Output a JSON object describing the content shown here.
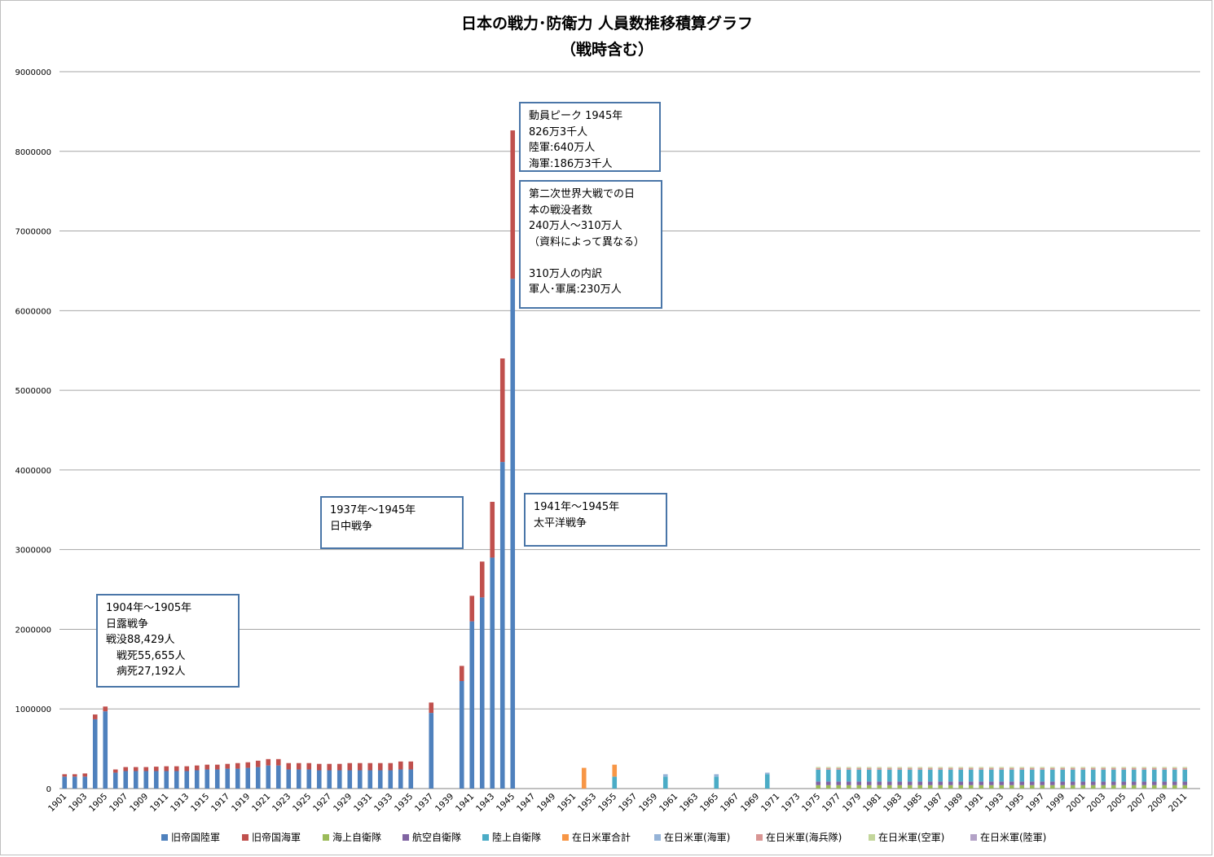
{
  "chart_data": {
    "type": "bar",
    "stacked": true,
    "title": "日本の戦力･防衛力 人員数推移積算グラフ",
    "subtitle": "（戦時含む）",
    "ylim": [
      0,
      9000000
    ],
    "y_ticks": [
      "0",
      "1000000",
      "2000000",
      "3000000",
      "4000000",
      "5000000",
      "6000000",
      "7000000",
      "8000000",
      "9000000"
    ],
    "grid": "horizontal",
    "legend_position": "bottom",
    "x_range": [
      1901,
      2012
    ],
    "x_tick_labels": [
      "1901",
      "1903",
      "1905",
      "1907",
      "1909",
      "1911",
      "1913",
      "1915",
      "1917",
      "1919",
      "1921",
      "1923",
      "1925",
      "1927",
      "1929",
      "1931",
      "1933",
      "1935",
      "1937",
      "1939",
      "1941",
      "1943",
      "1945",
      "1947",
      "1949",
      "1951",
      "1953",
      "1955",
      "1957",
      "1959",
      "1961",
      "1963",
      "1965",
      "1967",
      "1969",
      "1971",
      "1973",
      "1975",
      "1977",
      "1979",
      "1981",
      "1983",
      "1985",
      "1987",
      "1989",
      "1991",
      "1993",
      "1995",
      "1997",
      "1999",
      "2001",
      "2003",
      "2005",
      "2007",
      "2009",
      "2011"
    ],
    "series": [
      {
        "name": "旧帝国陸軍",
        "color": "#4f81bd",
        "values": [
          [
            1901,
            150000
          ],
          [
            1902,
            150000
          ],
          [
            1903,
            150000
          ],
          [
            1904,
            870000
          ],
          [
            1905,
            970000
          ],
          [
            1906,
            200000
          ],
          [
            1907,
            220000
          ],
          [
            1908,
            220000
          ],
          [
            1909,
            220000
          ],
          [
            1910,
            220000
          ],
          [
            1911,
            220000
          ],
          [
            1912,
            220000
          ],
          [
            1913,
            220000
          ],
          [
            1914,
            230000
          ],
          [
            1915,
            240000
          ],
          [
            1916,
            240000
          ],
          [
            1917,
            250000
          ],
          [
            1918,
            250000
          ],
          [
            1919,
            260000
          ],
          [
            1920,
            270000
          ],
          [
            1921,
            290000
          ],
          [
            1922,
            290000
          ],
          [
            1923,
            240000
          ],
          [
            1924,
            240000
          ],
          [
            1925,
            240000
          ],
          [
            1926,
            230000
          ],
          [
            1927,
            230000
          ],
          [
            1928,
            230000
          ],
          [
            1929,
            230000
          ],
          [
            1930,
            230000
          ],
          [
            1931,
            230000
          ],
          [
            1932,
            230000
          ],
          [
            1933,
            230000
          ],
          [
            1934,
            240000
          ],
          [
            1935,
            240000
          ],
          [
            1937,
            950000
          ],
          [
            1940,
            1350000
          ],
          [
            1941,
            2100000
          ],
          [
            1942,
            2400000
          ],
          [
            1943,
            2900000
          ],
          [
            1944,
            4100000
          ],
          [
            1945,
            6400000
          ]
        ]
      },
      {
        "name": "旧帝国海軍",
        "color": "#c0504d",
        "values": [
          [
            1901,
            30000
          ],
          [
            1902,
            30000
          ],
          [
            1903,
            40000
          ],
          [
            1904,
            60000
          ],
          [
            1905,
            60000
          ],
          [
            1906,
            40000
          ],
          [
            1907,
            50000
          ],
          [
            1908,
            50000
          ],
          [
            1909,
            50000
          ],
          [
            1910,
            55000
          ],
          [
            1911,
            60000
          ],
          [
            1912,
            60000
          ],
          [
            1913,
            60000
          ],
          [
            1914,
            60000
          ],
          [
            1915,
            60000
          ],
          [
            1916,
            60000
          ],
          [
            1917,
            60000
          ],
          [
            1918,
            70000
          ],
          [
            1919,
            70000
          ],
          [
            1920,
            80000
          ],
          [
            1921,
            80000
          ],
          [
            1922,
            80000
          ],
          [
            1923,
            80000
          ],
          [
            1924,
            80000
          ],
          [
            1925,
            80000
          ],
          [
            1926,
            80000
          ],
          [
            1927,
            80000
          ],
          [
            1928,
            80000
          ],
          [
            1929,
            90000
          ],
          [
            1930,
            90000
          ],
          [
            1931,
            90000
          ],
          [
            1932,
            90000
          ],
          [
            1933,
            90000
          ],
          [
            1934,
            100000
          ],
          [
            1935,
            100000
          ],
          [
            1937,
            130000
          ],
          [
            1940,
            190000
          ],
          [
            1941,
            320000
          ],
          [
            1942,
            450000
          ],
          [
            1943,
            700000
          ],
          [
            1944,
            1300000
          ],
          [
            1945,
            1863000
          ]
        ]
      },
      {
        "name": "海上自衛隊",
        "color": "#9bbb59",
        "values": []
      },
      {
        "name": "航空自衛隊",
        "color": "#8064a2",
        "values": []
      },
      {
        "name": "陸上自衛隊",
        "color": "#4bacc6",
        "values": [
          [
            1955,
            150000
          ],
          [
            1960,
            150000
          ],
          [
            1965,
            150000
          ],
          [
            1970,
            180000
          ]
        ]
      },
      {
        "name": "在日米軍合計",
        "color": "#f79646",
        "values": [
          [
            1952,
            260000
          ],
          [
            1955,
            150000
          ]
        ]
      },
      {
        "name": "在日米軍(海軍)",
        "color": "#95b3d7",
        "values": [
          [
            1960,
            30000
          ],
          [
            1965,
            30000
          ],
          [
            1970,
            20000
          ]
        ]
      },
      {
        "name": "在日米軍(海兵隊)",
        "color": "#d99694",
        "values": []
      },
      {
        "name": "在日米軍(空軍)",
        "color": "#c3d69b",
        "values": []
      },
      {
        "name": "在日米軍(陸軍)",
        "color": "#b3a2c7",
        "values": []
      }
    ],
    "sdf_period": [
      1975,
      2011
    ],
    "sdf_stack": [
      {
        "series": "海上自衛隊",
        "value": 43000
      },
      {
        "series": "航空自衛隊",
        "value": 45000
      },
      {
        "series": "陸上自衛隊",
        "value": 150000
      },
      {
        "series": "在日米軍(海兵隊)",
        "value": 20000
      },
      {
        "series": "在日米軍(空軍)",
        "value": 13000
      }
    ]
  },
  "annotations": [
    {
      "lines": [
        "1904年～1905年",
        "日露戦争",
        "戦没88,429人",
        "　戦死55,655人",
        "　病死27,192人"
      ]
    },
    {
      "lines": [
        "1937年～1945年",
        "日中戦争"
      ]
    },
    {
      "lines": [
        "動員ピーク 1945年",
        "826万3千人",
        "陸軍:640万人",
        "海軍:186万3千人"
      ]
    },
    {
      "lines": [
        "第二次世界大戦での日",
        "本の戦没者数",
        "240万人～310万人",
        "（資料によって異なる）",
        "",
        "310万人の内訳",
        "軍人･軍属:230万人"
      ]
    },
    {
      "lines": [
        "1941年～1945年",
        "太平洋戦争"
      ]
    }
  ]
}
